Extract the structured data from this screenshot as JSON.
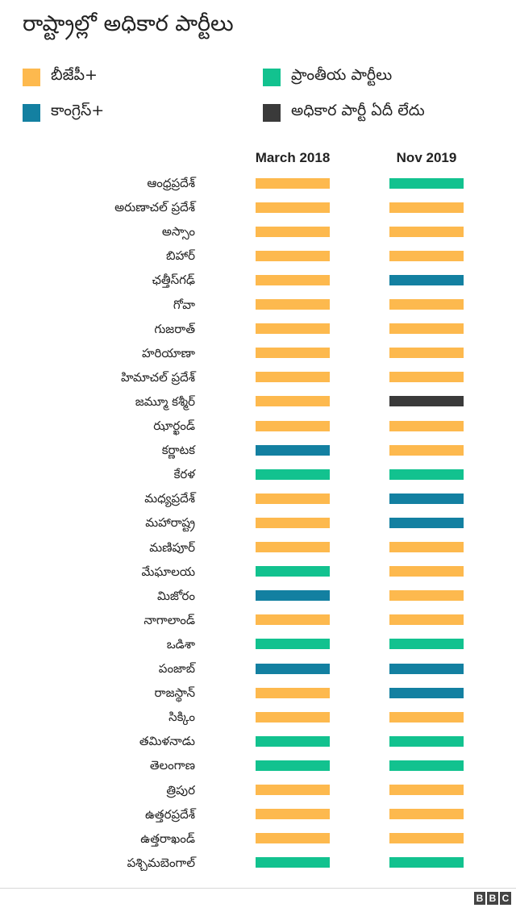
{
  "title": "రాష్ట్రాల్లో అధికార పార్టీలు",
  "legend": [
    {
      "key": "bjp",
      "label": "బీజేపీ+",
      "color": "#fdb94e"
    },
    {
      "key": "regional",
      "label": "ప్రాంతీయ పార్టీలు",
      "color": "#12c28f"
    },
    {
      "key": "congress",
      "label": "కాంగ్రెస్+",
      "color": "#1380a1"
    },
    {
      "key": "none",
      "label": "అధికార పార్టీ ఏదీ లేదు",
      "color": "#3a3a3a"
    }
  ],
  "chart_data": {
    "type": "table",
    "columns": [
      "March 2018",
      "Nov 2019"
    ],
    "rows": [
      {
        "state": "ఆంధ్రప్రదేశ్",
        "values": [
          "bjp",
          "regional"
        ]
      },
      {
        "state": "అరుణాచల్ ప్రదేశ్",
        "values": [
          "bjp",
          "bjp"
        ]
      },
      {
        "state": "అస్సాం",
        "values": [
          "bjp",
          "bjp"
        ]
      },
      {
        "state": "బిహార్",
        "values": [
          "bjp",
          "bjp"
        ]
      },
      {
        "state": "ఛత్తీస్‌గఢ్",
        "values": [
          "bjp",
          "congress"
        ]
      },
      {
        "state": "గోవా",
        "values": [
          "bjp",
          "bjp"
        ]
      },
      {
        "state": "గుజరాత్",
        "values": [
          "bjp",
          "bjp"
        ]
      },
      {
        "state": "హరియాణా",
        "values": [
          "bjp",
          "bjp"
        ]
      },
      {
        "state": "హిమాచల్ ప్రదేశ్",
        "values": [
          "bjp",
          "bjp"
        ]
      },
      {
        "state": "జమ్మూ కశ్మీర్",
        "values": [
          "bjp",
          "none"
        ]
      },
      {
        "state": "ఝార్ఖండ్",
        "values": [
          "bjp",
          "bjp"
        ]
      },
      {
        "state": "కర్ణాటక",
        "values": [
          "congress",
          "bjp"
        ]
      },
      {
        "state": "కేరళ",
        "values": [
          "regional",
          "regional"
        ]
      },
      {
        "state": "మధ్యప్రదేశ్",
        "values": [
          "bjp",
          "congress"
        ]
      },
      {
        "state": "మహారాష్ట్ర",
        "values": [
          "bjp",
          "congress"
        ]
      },
      {
        "state": "మణిపూర్",
        "values": [
          "bjp",
          "bjp"
        ]
      },
      {
        "state": "మేఘాలయ",
        "values": [
          "regional",
          "bjp"
        ]
      },
      {
        "state": "మిజోరం",
        "values": [
          "congress",
          "bjp"
        ]
      },
      {
        "state": "నాగాలాండ్",
        "values": [
          "bjp",
          "bjp"
        ]
      },
      {
        "state": "ఒడిశా",
        "values": [
          "regional",
          "regional"
        ]
      },
      {
        "state": "పంజాబ్",
        "values": [
          "congress",
          "congress"
        ]
      },
      {
        "state": "రాజస్థాన్",
        "values": [
          "bjp",
          "congress"
        ]
      },
      {
        "state": "సిక్కిం",
        "values": [
          "bjp",
          "bjp"
        ]
      },
      {
        "state": "తమిళనాడు",
        "values": [
          "regional",
          "regional"
        ]
      },
      {
        "state": "తెలంగాణ",
        "values": [
          "regional",
          "regional"
        ]
      },
      {
        "state": "త్రిపుర",
        "values": [
          "bjp",
          "bjp"
        ]
      },
      {
        "state": "ఉత్తరప్రదేశ్",
        "values": [
          "bjp",
          "bjp"
        ]
      },
      {
        "state": "ఉత్తరాఖండ్",
        "values": [
          "bjp",
          "bjp"
        ]
      },
      {
        "state": "పశ్చిమబెంగాల్",
        "values": [
          "regional",
          "regional"
        ]
      }
    ]
  },
  "footer": {
    "logo": [
      "B",
      "B",
      "C"
    ]
  }
}
